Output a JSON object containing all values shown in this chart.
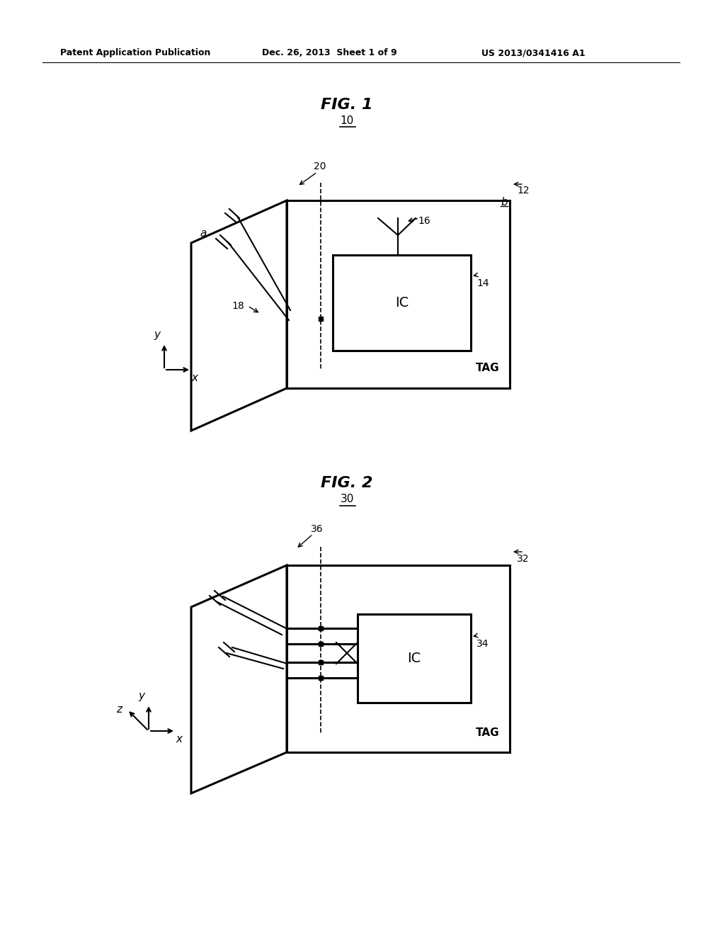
{
  "bg_color": "#ffffff",
  "header_left": "Patent Application Publication",
  "header_mid": "Dec. 26, 2013  Sheet 1 of 9",
  "header_right": "US 2013/0341416 A1",
  "fig1_title": "FIG. 1",
  "fig1_ref": "10",
  "fig2_title": "FIG. 2",
  "fig2_ref": "30"
}
